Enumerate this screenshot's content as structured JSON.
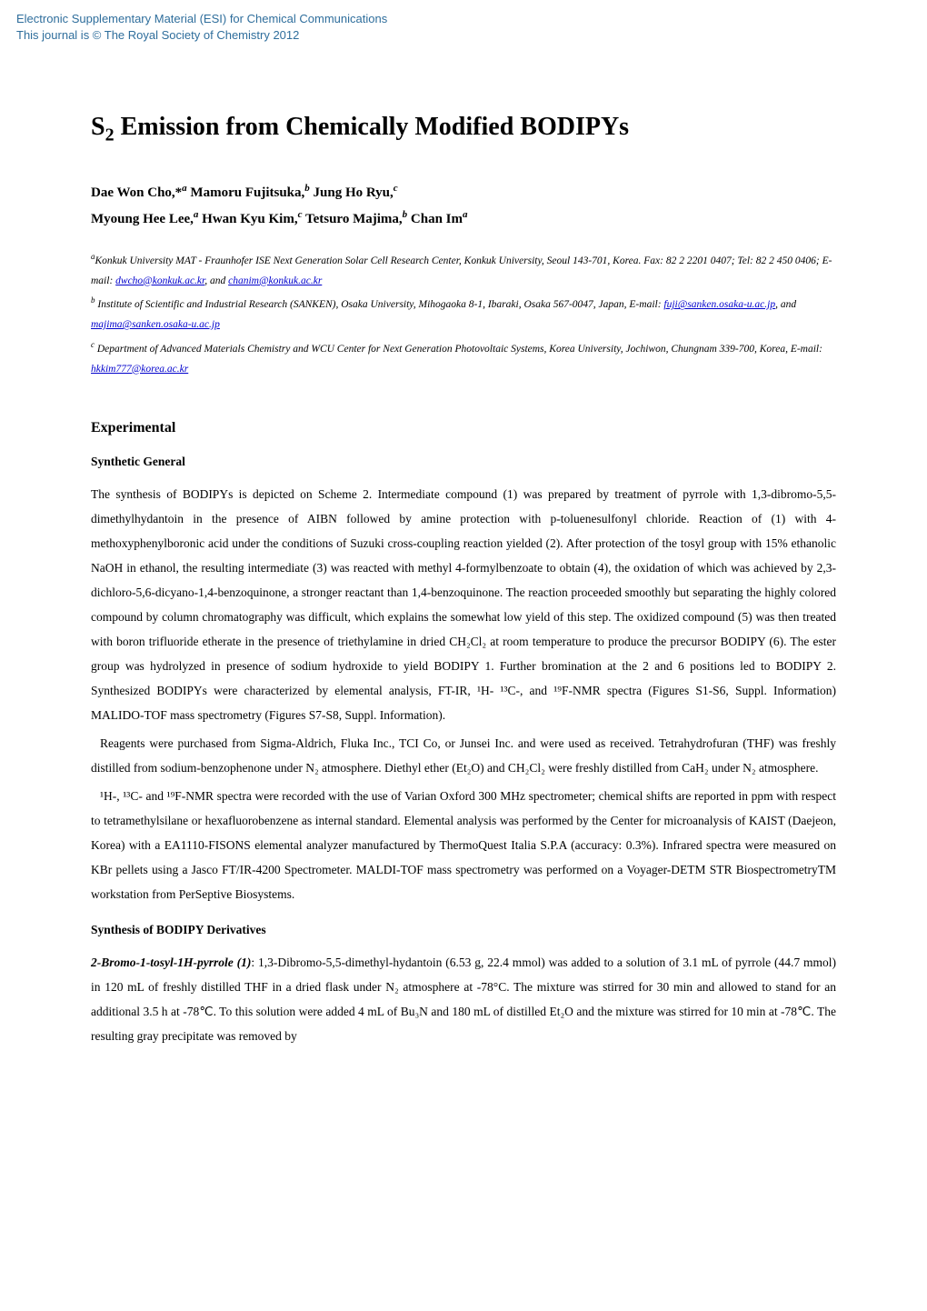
{
  "esi_header": {
    "line1": "Electronic Supplementary Material (ESI) for Chemical Communications",
    "line2": "This journal is © The Royal Society of Chemistry 2012",
    "color": "#2f6e9c"
  },
  "title": {
    "main": "S",
    "sub": "2",
    "rest": " Emission from Chemically Modified BODIPYs"
  },
  "authors": {
    "line1_parts": [
      {
        "text": "Dae Won Cho,*",
        "sup": "a"
      },
      {
        "text": " Mamoru Fujitsuka,",
        "sup": "b"
      },
      {
        "text": " Jung Ho Ryu,",
        "sup": "c"
      }
    ],
    "line2_parts": [
      {
        "text": "Myoung Hee Lee,",
        "sup": "a"
      },
      {
        "text": " Hwan Kyu Kim,",
        "sup": "c"
      },
      {
        "text": " Tetsuro Majima,",
        "sup": "b"
      },
      {
        "text": " Chan Im",
        "sup": "a"
      }
    ]
  },
  "affiliations": [
    {
      "sup": "a",
      "pre": "Konkuk University MAT - Fraunhofer ISE Next Generation Solar Cell Research Center, Konkuk University, Seoul 143-701, Korea. Fax: 82 2 2201 0407; Tel: 82 2 450 0406; E-mail: ",
      "link1": "dwcho@konkuk.ac.kr",
      "mid": ", and ",
      "link2": "chanim@konkuk.ac.kr"
    },
    {
      "sup": "b",
      "pre": " Institute of Scientific and Industrial Research (SANKEN), Osaka University, Mihogaoka 8-1, Ibaraki, Osaka 567-0047, Japan, E-mail: ",
      "link1": "fuji@sanken.osaka-u.ac.jp",
      "mid": ", and ",
      "link2": "majima@sanken.osaka-u.ac.jp"
    },
    {
      "sup": "c",
      "pre": " Department of Advanced Materials Chemistry and WCU Center for Next Generation Photovoltaic Systems, Korea University, Jochiwon, Chungnam 339-700, Korea, E-mail: ",
      "link1": "hkkim777@korea.ac.kr",
      "mid": "",
      "link2": ""
    }
  ],
  "sections": {
    "experimental_heading": "Experimental",
    "synthetic_general_heading": "Synthetic General",
    "para1": "The synthesis of BODIPYs is depicted on Scheme 2. Intermediate compound (1) was prepared by treatment of pyrrole with 1,3-dibromo-5,5-dimethylhydantoin in the presence of AIBN followed by amine protection with p-toluenesulfonyl chloride. Reaction of (1) with 4-methoxyphenylboronic acid under the conditions of Suzuki cross-coupling reaction yielded (2). After protection of the tosyl group with 15% ethanolic NaOH in ethanol, the resulting intermediate (3) was reacted with methyl 4-formylbenzoate to obtain (4), the oxidation of which was achieved by 2,3-dichloro-5,6-dicyano-1,4-benzoquinone, a stronger reactant than 1,4-benzoquinone. The reaction proceeded smoothly but separating the highly colored compound by column chromatography was difficult, which explains the somewhat low yield of this step. The oxidized compound (5) was then treated with boron trifluoride etherate in the presence of triethylamine in dried CH₂Cl₂ at room temperature to produce the precursor BODIPY (6). The ester group was hydrolyzed in presence of sodium hydroxide to yield BODIPY 1. Further bromination at the 2 and 6 positions led to BODIPY 2. Synthesized BODIPYs were characterized by elemental analysis, FT-IR, ¹H- ¹³C-, and ¹⁹F-NMR spectra (Figures S1-S6, Suppl. Information) MALIDO-TOF mass spectrometry (Figures S7-S8, Suppl. Information).",
    "para2": "Reagents were purchased from Sigma-Aldrich, Fluka Inc., TCI Co, or Junsei Inc. and were used as received. Tetrahydrofuran (THF) was freshly distilled from sodium-benzophenone under N₂ atmosphere. Diethyl ether (Et₂O) and CH₂Cl₂ were freshly distilled from CaH₂ under N₂ atmosphere.",
    "para3": "¹H-, ¹³C- and ¹⁹F-NMR spectra were recorded with the use of Varian Oxford 300 MHz spectrometer; chemical shifts are reported in ppm with respect to tetramethylsilane or hexafluorobenzene as internal standard. Elemental analysis was performed by the Center for microanalysis of KAIST (Daejeon, Korea) with a EA1110-FISONS elemental analyzer manufactured by ThermoQuest Italia S.P.A (accuracy: 0.3%). Infrared spectra were measured on KBr pellets using a Jasco FT/IR-4200 Spectrometer. MALDI-TOF mass spectrometry was performed on a Voyager-DETM STR BiospectrometryTM workstation from PerSeptive Biosystems.",
    "synthesis_heading": "Synthesis of BODIPY Derivatives",
    "para4_title": "2-Bromo-1-tosyl-1H-pyrrole (1)",
    "para4_body": ": 1,3-Dibromo-5,5-dimethyl-hydantoin (6.53 g, 22.4 mmol) was added to a solution of 3.1 mL of pyrrole (44.7 mmol) in 120 mL of freshly distilled THF in a dried flask under N₂ atmosphere at -78°C. The mixture was stirred for 30 min and allowed to stand for an additional 3.5 h at -78℃. To this solution were added 4 mL of Bu₃N and 180 mL of distilled Et₂O and the mixture was stirred for 10 min at -78℃. The resulting gray precipitate was removed by"
  },
  "colors": {
    "link": "#0000cc",
    "text": "#000000",
    "bg": "#ffffff"
  }
}
